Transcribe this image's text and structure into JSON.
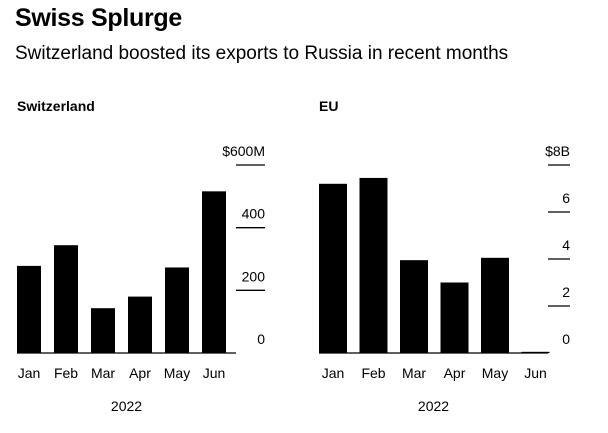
{
  "header": {
    "title": "Swiss Splurge",
    "subtitle": "Switzerland boosted its exports to Russia in recent months"
  },
  "chart_data": [
    {
      "type": "bar",
      "title": "Switzerland",
      "categories": [
        "Jan",
        "Feb",
        "Mar",
        "Apr",
        "May",
        "Jun"
      ],
      "values": [
        278,
        344,
        143,
        180,
        273,
        516
      ],
      "ylim": [
        0,
        600
      ],
      "yticks": [
        0,
        200,
        400,
        600
      ],
      "ytick_labels": [
        "0",
        "200",
        "400",
        "$600M"
      ],
      "xlabel": "2022",
      "axis_side": "right",
      "grid": false
    },
    {
      "type": "bar",
      "title": "EU",
      "categories": [
        "Jan",
        "Feb",
        "Mar",
        "Apr",
        "May",
        "Jun"
      ],
      "values": [
        7.2,
        7.45,
        3.95,
        3.0,
        4.05,
        0.05
      ],
      "ylim": [
        0,
        8
      ],
      "yticks": [
        0,
        2,
        4,
        6,
        8
      ],
      "ytick_labels": [
        "0",
        "2",
        "4",
        "6",
        "$8B"
      ],
      "xlabel": "2022",
      "axis_side": "right",
      "grid": false
    }
  ],
  "colors": {
    "bar": "#000000",
    "axis": "#000000",
    "background": "#ffffff"
  }
}
